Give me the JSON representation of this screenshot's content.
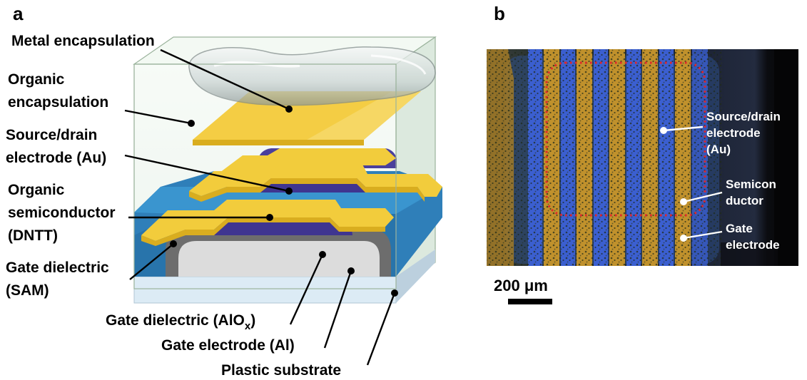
{
  "panel_a": {
    "letter": "a",
    "labels": {
      "metal_encapsulation": "Metal encapsulation",
      "organic_encapsulation_1": "Organic",
      "organic_encapsulation_2": "encapsulation",
      "source_drain_1": "Source/drain",
      "source_drain_2": "electrode (Au)",
      "semiconductor_1": "Organic",
      "semiconductor_2": "semiconductor",
      "semiconductor_3": "(DNTT)",
      "gate_dielectric_sam_1": "Gate dielectric",
      "gate_dielectric_sam_2": "(SAM)",
      "gate_dielectric_alox_main": "Gate dielectric (AlO",
      "gate_dielectric_alox_sub": "x",
      "gate_dielectric_alox_close": ")",
      "gate_electrode": "Gate electrode (Al)",
      "plastic_substrate": "Plastic substrate"
    },
    "colors": {
      "gold": "#f2cc3c",
      "semiconductor": "#4a3f9c",
      "dielectric_blue": "#2f7fb9",
      "alox_gray": "#6d6d6d",
      "aluminum": "#dcdcdc",
      "substrate": "#dcebf5",
      "encapsulation": "#e8f3ea"
    }
  },
  "panel_b": {
    "letter": "b",
    "labels": {
      "source_drain_1": "Source/drain",
      "source_drain_2": "electrode",
      "source_drain_3": "(Au)",
      "semiconductor_1": "Semicon",
      "semiconductor_2": "ductor",
      "gate_electrode_1": "Gate",
      "gate_electrode_2": "electrode"
    },
    "scale_bar": "200 μm",
    "colors": {
      "background": "#151a26",
      "gold_stripe": "#c0912c",
      "blue_stripe": "#3b5fd0",
      "highlight_box": "#e0262a"
    }
  }
}
